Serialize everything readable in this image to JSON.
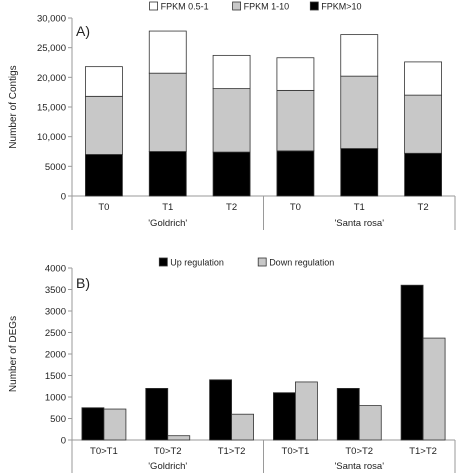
{
  "chart_data": [
    {
      "type": "bar",
      "stacked": true,
      "panel_label": "A)",
      "title": "",
      "xlabel": "",
      "ylabel": "Number of Contigs",
      "ylim": [
        0,
        30000
      ],
      "yticks": [
        "0",
        "5000",
        "10,000",
        "15,000",
        "20,000",
        "25,000",
        "30,000"
      ],
      "ytick_values": [
        0,
        5000,
        10000,
        15000,
        20000,
        25000,
        30000
      ],
      "categories": [
        "T0",
        "T1",
        "T2",
        "T0",
        "T1",
        "T2"
      ],
      "groups": [
        {
          "label": "'Goldrich'",
          "count": 3
        },
        {
          "label": "'Santa rosa'",
          "count": 3
        }
      ],
      "legend_position": "top",
      "series": [
        {
          "name": "FPKM>10",
          "color": "#000000",
          "values": [
            7000,
            7500,
            7400,
            7600,
            8000,
            7200
          ]
        },
        {
          "name": "FPKM 1-10",
          "color": "#c8c8c8",
          "values": [
            9800,
            13200,
            10700,
            10200,
            12200,
            9800
          ]
        },
        {
          "name": "FPKM 0.5-1",
          "color": "#ffffff",
          "values": [
            5000,
            7100,
            5600,
            5500,
            7000,
            5600
          ]
        }
      ],
      "legend_order": [
        2,
        1,
        0
      ]
    },
    {
      "type": "bar",
      "stacked": false,
      "panel_label": "B)",
      "title": "",
      "xlabel": "",
      "ylabel": "Number of DEGs",
      "ylim": [
        0,
        4000
      ],
      "yticks": [
        "0",
        "500",
        "1000",
        "1500",
        "2000",
        "2500",
        "3000",
        "3500",
        "4000"
      ],
      "ytick_values": [
        0,
        500,
        1000,
        1500,
        2000,
        2500,
        3000,
        3500,
        4000
      ],
      "categories": [
        "T0>T1",
        "T0>T2",
        "T1>T2",
        "T0>T1",
        "T0>T2",
        "T1>T2"
      ],
      "groups": [
        {
          "label": "'Goldrich'",
          "count": 3
        },
        {
          "label": "'Santa rosa'",
          "count": 3
        }
      ],
      "legend_position": "top",
      "series": [
        {
          "name": "Up regulation",
          "color": "#000000",
          "values": [
            750,
            1200,
            1400,
            1100,
            1200,
            3600
          ]
        },
        {
          "name": "Down regulation",
          "color": "#c8c8c8",
          "values": [
            720,
            100,
            600,
            1350,
            800,
            2370
          ]
        }
      ],
      "legend_order": [
        0,
        1
      ]
    }
  ]
}
